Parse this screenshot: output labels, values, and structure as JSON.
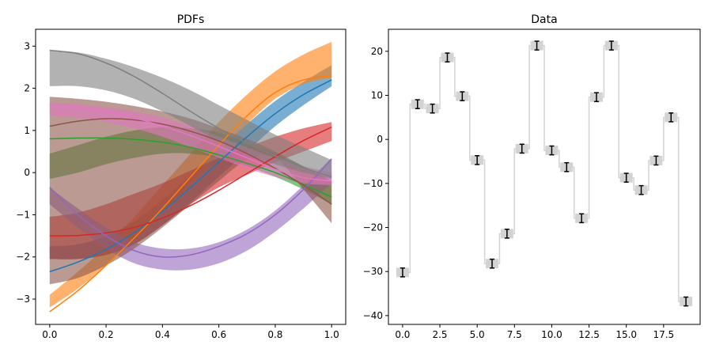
{
  "chart_data": [
    {
      "type": "line",
      "title": "PDFs",
      "xlabel": "",
      "ylabel": "",
      "xlim": [
        -0.05,
        1.05
      ],
      "ylim": [
        -3.6,
        3.4
      ],
      "xticks": [
        0.0,
        0.2,
        0.4,
        0.6,
        0.8,
        1.0
      ],
      "xtick_labels": [
        "0.0",
        "0.2",
        "0.4",
        "0.6",
        "0.8",
        "1.0"
      ],
      "yticks": [
        -3,
        -2,
        -1,
        0,
        1,
        2,
        3
      ],
      "ytick_labels": [
        "−3",
        "−2",
        "−1",
        "0",
        "1",
        "2",
        "3"
      ],
      "grid": false,
      "x": [
        0.0,
        0.1,
        0.2,
        0.3,
        0.4,
        0.5,
        0.6,
        0.7,
        0.8,
        0.9,
        1.0
      ],
      "series": [
        {
          "color": "#1f77b4",
          "mean": [
            -2.35,
            -2.12,
            -1.82,
            -1.42,
            -0.92,
            -0.35,
            0.25,
            0.85,
            1.4,
            1.85,
            2.2
          ],
          "lower": [
            -2.05,
            -2.05,
            -1.95,
            -1.7,
            -1.25,
            -0.7,
            -0.1,
            0.5,
            1.1,
            1.6,
            2.05
          ],
          "upper": [
            -1.75,
            -1.7,
            -1.5,
            -1.15,
            -0.65,
            -0.05,
            0.55,
            1.15,
            1.7,
            2.15,
            2.55
          ]
        },
        {
          "color": "#ff7f0e",
          "mean": [
            -3.3,
            -2.8,
            -2.2,
            -1.55,
            -0.85,
            -0.1,
            0.65,
            1.35,
            1.9,
            2.2,
            2.3
          ],
          "lower": [
            -3.2,
            -2.75,
            -2.2,
            -1.6,
            -0.95,
            -0.25,
            0.45,
            1.15,
            1.75,
            2.1,
            2.25
          ],
          "upper": [
            -2.9,
            -2.35,
            -1.75,
            -1.05,
            -0.3,
            0.45,
            1.2,
            1.85,
            2.4,
            2.8,
            3.1
          ]
        },
        {
          "color": "#2ca02c",
          "mean": [
            0.8,
            0.82,
            0.82,
            0.79,
            0.72,
            0.6,
            0.42,
            0.22,
            0.0,
            -0.28,
            -0.58
          ],
          "lower": [
            -0.15,
            0.0,
            0.2,
            0.35,
            0.45,
            0.45,
            0.35,
            0.15,
            -0.1,
            -0.4,
            -0.75
          ],
          "upper": [
            0.45,
            0.65,
            0.85,
            1.0,
            1.08,
            1.05,
            0.95,
            0.7,
            0.45,
            0.15,
            -0.2
          ]
        },
        {
          "color": "#d62728",
          "mean": [
            -1.5,
            -1.49,
            -1.43,
            -1.3,
            -1.08,
            -0.78,
            -0.42,
            -0.02,
            0.38,
            0.76,
            1.08
          ],
          "lower": [
            -2.05,
            -2.05,
            -1.95,
            -1.7,
            -1.25,
            -0.75,
            -0.35,
            -0.05,
            0.25,
            0.5,
            0.75
          ],
          "upper": [
            -1.05,
            -0.95,
            -0.75,
            -0.5,
            -0.25,
            0.05,
            0.35,
            0.6,
            0.85,
            1.05,
            1.2
          ]
        },
        {
          "color": "#9467bd",
          "mean": [
            -0.35,
            -1.0,
            -1.5,
            -1.85,
            -2.0,
            -1.95,
            -1.75,
            -1.45,
            -1.0,
            -0.4,
            0.32
          ],
          "lower": [
            -0.75,
            -1.3,
            -1.8,
            -2.15,
            -2.3,
            -2.3,
            -2.15,
            -1.85,
            -1.4,
            -0.85,
            -0.25
          ],
          "upper": [
            -0.35,
            -0.85,
            -1.3,
            -1.65,
            -1.8,
            -1.8,
            -1.65,
            -1.35,
            -0.9,
            -0.3,
            0.35
          ]
        },
        {
          "color": "#8c564b",
          "mean": [
            1.1,
            1.22,
            1.28,
            1.25,
            1.15,
            0.98,
            0.75,
            0.45,
            0.1,
            -0.3,
            -0.75
          ],
          "lower": [
            -2.65,
            -2.5,
            -2.2,
            -1.8,
            -1.3,
            -0.75,
            -0.2,
            0.3,
            0.35,
            -0.4,
            -1.2
          ],
          "upper": [
            1.8,
            1.75,
            1.68,
            1.58,
            1.45,
            1.28,
            1.05,
            0.8,
            0.5,
            0.15,
            -0.2
          ]
        },
        {
          "color": "#e377c2",
          "mean": [
            1.6,
            1.55,
            1.45,
            1.3,
            1.1,
            0.88,
            0.62,
            0.35,
            0.08,
            -0.12,
            -0.2
          ],
          "lower": [
            1.35,
            1.3,
            1.2,
            1.05,
            0.85,
            0.6,
            0.35,
            0.1,
            -0.1,
            -0.25,
            -0.3
          ],
          "upper": [
            1.65,
            1.62,
            1.55,
            1.45,
            1.3,
            1.1,
            0.85,
            0.6,
            0.35,
            0.15,
            0.0
          ]
        },
        {
          "color": "#7f7f7f",
          "mean": [
            2.9,
            2.82,
            2.6,
            2.28,
            1.88,
            1.45,
            1.05,
            0.7,
            0.4,
            0.12,
            -0.1
          ],
          "lower": [
            2.05,
            2.05,
            1.95,
            1.75,
            1.45,
            1.1,
            0.75,
            0.45,
            0.2,
            0.0,
            -0.15
          ],
          "upper": [
            2.9,
            2.85,
            2.7,
            2.5,
            2.25,
            1.95,
            1.6,
            1.25,
            0.9,
            0.6,
            0.3
          ]
        }
      ]
    },
    {
      "type": "step",
      "title": "Data",
      "xlabel": "",
      "ylabel": "",
      "xlim": [
        -0.95,
        19.95
      ],
      "ylim": [
        -42,
        25
      ],
      "xticks": [
        0,
        2.5,
        5,
        7.5,
        10,
        12.5,
        15,
        17.5
      ],
      "xtick_labels": [
        "0.0",
        "2.5",
        "5.0",
        "7.5",
        "10.0",
        "12.5",
        "15.0",
        "17.5"
      ],
      "yticks": [
        -40,
        -30,
        -20,
        -10,
        0,
        10,
        20
      ],
      "ytick_labels": [
        "−40",
        "−30",
        "−20",
        "−10",
        "0",
        "10",
        "20"
      ],
      "grid": false,
      "step_color": "#d3d3d3",
      "point_color": "#000000",
      "x": [
        0,
        1,
        2,
        3,
        4,
        5,
        6,
        7,
        8,
        9,
        10,
        11,
        12,
        13,
        14,
        15,
        16,
        17,
        18,
        19
      ],
      "y": [
        -30.2,
        8.0,
        7.0,
        18.6,
        9.8,
        -4.7,
        -28.2,
        -21.4,
        -2.1,
        21.3,
        -2.5,
        -6.3,
        -17.9,
        9.6,
        21.3,
        -8.7,
        -11.5,
        -4.8,
        5.0,
        -36.8
      ],
      "yerr": [
        1.0,
        1.0,
        1.0,
        1.0,
        1.0,
        1.0,
        1.0,
        1.0,
        1.0,
        1.0,
        1.0,
        1.0,
        1.0,
        1.0,
        1.0,
        1.0,
        1.0,
        1.0,
        1.0,
        1.0
      ]
    }
  ]
}
